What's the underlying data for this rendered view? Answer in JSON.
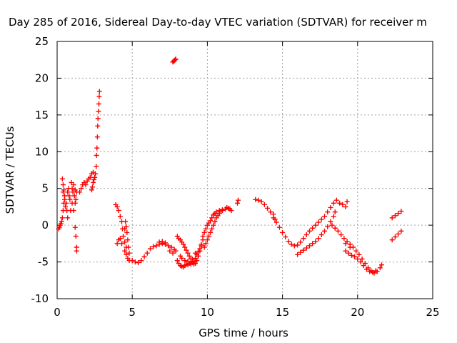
{
  "chart_data": {
    "type": "scatter",
    "title": "Day 285 of 2016, Sidereal Day-to-day VTEC variation (SDTVAR) for receiver m",
    "xlabel": "GPS time / hours",
    "ylabel": "SDTVAR / TECUs",
    "xlim": [
      0,
      25
    ],
    "ylim": [
      -10,
      25
    ],
    "xticks": [
      "0",
      "5",
      "10",
      "15",
      "20",
      "25"
    ],
    "yticks": [
      "-10",
      "-5",
      "0",
      "5",
      "10",
      "15",
      "20",
      "25"
    ],
    "xtick_values": [
      0,
      5,
      10,
      15,
      20,
      25
    ],
    "ytick_values": [
      -10,
      -5,
      0,
      5,
      10,
      15,
      20,
      25
    ],
    "grid": true,
    "marker": "+",
    "series": [
      {
        "name": "SDTVAR",
        "color": "#ff0000",
        "points": [
          [
            0.1,
            -0.5
          ],
          [
            0.15,
            -0.3
          ],
          [
            0.2,
            0.0
          ],
          [
            0.25,
            0.2
          ],
          [
            0.3,
            0.5
          ],
          [
            0.35,
            1.0
          ],
          [
            0.4,
            2.0
          ],
          [
            0.45,
            3.0
          ],
          [
            0.5,
            4.0
          ],
          [
            0.35,
            6.3
          ],
          [
            0.4,
            5.5
          ],
          [
            0.4,
            4.5
          ],
          [
            0.45,
            4.8
          ],
          [
            0.5,
            3.5
          ],
          [
            0.55,
            2.5
          ],
          [
            0.6,
            3.0
          ],
          [
            0.65,
            2.0
          ],
          [
            0.7,
            1.0
          ],
          [
            0.7,
            4.5
          ],
          [
            0.75,
            5.0
          ],
          [
            0.8,
            4.0
          ],
          [
            0.85,
            3.5
          ],
          [
            0.9,
            2.0
          ],
          [
            0.95,
            5.8
          ],
          [
            1.0,
            5.0
          ],
          [
            1.0,
            3.0
          ],
          [
            1.05,
            4.5
          ],
          [
            1.1,
            5.5
          ],
          [
            1.1,
            2.0
          ],
          [
            1.15,
            4.0
          ],
          [
            1.2,
            3.0
          ],
          [
            1.2,
            4.8
          ],
          [
            1.25,
            3.5
          ],
          [
            1.3,
            4.5
          ],
          [
            1.2,
            -0.3
          ],
          [
            1.25,
            -1.5
          ],
          [
            1.3,
            -3.0
          ],
          [
            1.3,
            -3.5
          ],
          [
            1.5,
            4.5
          ],
          [
            1.6,
            5.0
          ],
          [
            1.7,
            5.5
          ],
          [
            1.8,
            5.8
          ],
          [
            1.9,
            5.5
          ],
          [
            2.0,
            6.0
          ],
          [
            2.1,
            6.3
          ],
          [
            2.2,
            6.5
          ],
          [
            2.3,
            7.0
          ],
          [
            2.4,
            7.2
          ],
          [
            2.3,
            4.8
          ],
          [
            2.35,
            5.2
          ],
          [
            2.4,
            5.8
          ],
          [
            2.45,
            6.2
          ],
          [
            2.5,
            6.5
          ],
          [
            2.55,
            7.0
          ],
          [
            2.6,
            8.0
          ],
          [
            2.62,
            9.5
          ],
          [
            2.65,
            10.5
          ],
          [
            2.68,
            12.0
          ],
          [
            2.7,
            13.5
          ],
          [
            2.72,
            14.5
          ],
          [
            2.75,
            15.5
          ],
          [
            2.78,
            16.5
          ],
          [
            2.8,
            17.5
          ],
          [
            2.82,
            18.2
          ],
          [
            7.7,
            22.2
          ],
          [
            7.75,
            22.3
          ],
          [
            7.8,
            22.4
          ],
          [
            7.85,
            22.5
          ],
          [
            7.9,
            22.6
          ],
          [
            3.9,
            2.8
          ],
          [
            4.0,
            2.5
          ],
          [
            4.1,
            2.0
          ],
          [
            4.2,
            1.2
          ],
          [
            4.3,
            0.5
          ],
          [
            4.35,
            -0.5
          ],
          [
            4.4,
            -1.5
          ],
          [
            4.5,
            -2.3
          ],
          [
            4.6,
            -3.0
          ],
          [
            4.0,
            -2.5
          ],
          [
            4.1,
            -2.0
          ],
          [
            4.2,
            -1.8
          ],
          [
            4.3,
            -2.5
          ],
          [
            4.5,
            -3.5
          ],
          [
            4.6,
            -4.0
          ],
          [
            4.7,
            -4.5
          ],
          [
            4.8,
            -4.8
          ],
          [
            4.5,
            -0.5
          ],
          [
            4.55,
            0.5
          ],
          [
            4.6,
            -0.2
          ],
          [
            4.65,
            -1.0
          ],
          [
            4.7,
            -2.0
          ],
          [
            4.75,
            -3.0
          ],
          [
            4.8,
            -3.8
          ],
          [
            5.0,
            -4.8
          ],
          [
            5.2,
            -5.0
          ],
          [
            5.4,
            -5.1
          ],
          [
            5.6,
            -4.8
          ],
          [
            5.8,
            -4.3
          ],
          [
            6.0,
            -3.8
          ],
          [
            6.2,
            -3.2
          ],
          [
            6.4,
            -2.9
          ],
          [
            6.6,
            -2.8
          ],
          [
            6.8,
            -2.6
          ],
          [
            7.0,
            -2.5
          ],
          [
            7.2,
            -2.4
          ],
          [
            7.4,
            -2.8
          ],
          [
            7.6,
            -3.0
          ],
          [
            7.8,
            -3.3
          ],
          [
            7.9,
            -3.5
          ],
          [
            6.8,
            -2.3
          ],
          [
            7.0,
            -2.2
          ],
          [
            7.2,
            -2.6
          ],
          [
            7.5,
            -3.5
          ],
          [
            7.7,
            -3.8
          ],
          [
            8.0,
            -1.5
          ],
          [
            8.1,
            -1.8
          ],
          [
            8.2,
            -2.0
          ],
          [
            8.3,
            -2.3
          ],
          [
            8.4,
            -2.6
          ],
          [
            8.5,
            -3.0
          ],
          [
            8.6,
            -3.4
          ],
          [
            8.7,
            -3.8
          ],
          [
            8.8,
            -4.2
          ],
          [
            8.9,
            -4.6
          ],
          [
            9.0,
            -5.0
          ],
          [
            9.1,
            -5.3
          ],
          [
            9.2,
            -5.2
          ],
          [
            9.3,
            -4.8
          ],
          [
            9.4,
            -4.2
          ],
          [
            9.5,
            -3.5
          ],
          [
            9.6,
            -2.8
          ],
          [
            9.7,
            -2.0
          ],
          [
            8.0,
            -4.8
          ],
          [
            8.1,
            -5.2
          ],
          [
            8.2,
            -5.5
          ],
          [
            8.3,
            -5.6
          ],
          [
            8.4,
            -5.7
          ],
          [
            8.5,
            -5.5
          ],
          [
            8.6,
            -5.3
          ],
          [
            8.7,
            -5.4
          ],
          [
            8.8,
            -5.2
          ],
          [
            8.9,
            -5.3
          ],
          [
            9.0,
            -5.1
          ],
          [
            9.1,
            -4.9
          ],
          [
            9.2,
            -4.5
          ],
          [
            9.3,
            -4.0
          ],
          [
            9.4,
            -3.6
          ],
          [
            9.5,
            -3.2
          ],
          [
            9.6,
            -2.6
          ],
          [
            8.2,
            -4.2
          ],
          [
            8.3,
            -4.5
          ],
          [
            8.5,
            -4.8
          ],
          [
            8.7,
            -4.9
          ],
          [
            9.0,
            -4.6
          ],
          [
            9.2,
            -3.8
          ],
          [
            9.7,
            -1.5
          ],
          [
            9.8,
            -1.0
          ],
          [
            9.9,
            -0.5
          ],
          [
            10.0,
            0.0
          ],
          [
            10.1,
            0.3
          ],
          [
            10.2,
            0.6
          ],
          [
            10.3,
            1.0
          ],
          [
            10.4,
            1.4
          ],
          [
            10.5,
            1.6
          ],
          [
            10.6,
            1.8
          ],
          [
            10.8,
            2.0
          ],
          [
            11.0,
            2.1
          ],
          [
            11.2,
            2.2
          ],
          [
            11.4,
            2.3
          ],
          [
            11.6,
            2.0
          ],
          [
            9.8,
            -3.0
          ],
          [
            9.9,
            -2.5
          ],
          [
            10.0,
            -2.0
          ],
          [
            10.1,
            -1.5
          ],
          [
            10.2,
            -1.0
          ],
          [
            10.3,
            -0.5
          ],
          [
            10.4,
            0.0
          ],
          [
            10.5,
            0.5
          ],
          [
            10.6,
            1.0
          ],
          [
            10.7,
            1.3
          ],
          [
            10.8,
            1.6
          ],
          [
            10.9,
            1.9
          ],
          [
            11.0,
            2.0
          ],
          [
            11.3,
            2.4
          ],
          [
            11.5,
            2.2
          ],
          [
            12.0,
            3.0
          ],
          [
            12.05,
            3.4
          ],
          [
            13.2,
            3.5
          ],
          [
            13.4,
            3.4
          ],
          [
            13.6,
            3.2
          ],
          [
            13.8,
            2.8
          ],
          [
            14.0,
            2.3
          ],
          [
            14.2,
            1.8
          ],
          [
            14.4,
            1.0
          ],
          [
            14.6,
            0.4
          ],
          [
            14.8,
            -0.3
          ],
          [
            15.0,
            -1.0
          ],
          [
            15.2,
            -1.6
          ],
          [
            15.4,
            -2.2
          ],
          [
            15.6,
            -2.6
          ],
          [
            15.8,
            -2.8
          ],
          [
            16.0,
            -2.7
          ],
          [
            16.2,
            -2.3
          ],
          [
            16.4,
            -1.8
          ],
          [
            16.6,
            -1.3
          ],
          [
            16.8,
            -0.8
          ],
          [
            17.0,
            -0.4
          ],
          [
            17.2,
            0.0
          ],
          [
            17.4,
            0.4
          ],
          [
            17.6,
            0.8
          ],
          [
            17.8,
            1.2
          ],
          [
            18.0,
            1.8
          ],
          [
            18.2,
            2.4
          ],
          [
            18.4,
            3.0
          ],
          [
            18.6,
            3.4
          ],
          [
            18.8,
            3.0
          ],
          [
            19.0,
            2.8
          ],
          [
            19.2,
            2.5
          ],
          [
            19.3,
            3.2
          ],
          [
            14.4,
            1.5
          ],
          [
            14.5,
            0.8
          ],
          [
            16.0,
            -4.0
          ],
          [
            16.2,
            -3.7
          ],
          [
            16.4,
            -3.4
          ],
          [
            16.6,
            -3.1
          ],
          [
            16.8,
            -2.8
          ],
          [
            17.0,
            -2.5
          ],
          [
            17.2,
            -2.2
          ],
          [
            17.4,
            -1.8
          ],
          [
            17.6,
            -1.3
          ],
          [
            17.8,
            -0.8
          ],
          [
            18.0,
            -0.2
          ],
          [
            18.2,
            0.5
          ],
          [
            18.4,
            1.2
          ],
          [
            18.5,
            1.8
          ],
          [
            18.3,
            0.0
          ],
          [
            18.5,
            -0.4
          ],
          [
            18.7,
            -0.8
          ],
          [
            18.9,
            -1.3
          ],
          [
            19.1,
            -1.8
          ],
          [
            19.3,
            -2.2
          ],
          [
            19.5,
            -2.6
          ],
          [
            19.7,
            -3.0
          ],
          [
            19.9,
            -3.5
          ],
          [
            20.1,
            -4.0
          ],
          [
            20.3,
            -4.6
          ],
          [
            20.5,
            -5.2
          ],
          [
            20.7,
            -5.8
          ],
          [
            20.9,
            -6.2
          ],
          [
            21.1,
            -6.5
          ],
          [
            21.3,
            -6.3
          ],
          [
            21.5,
            -5.8
          ],
          [
            21.6,
            -5.4
          ],
          [
            19.2,
            -3.5
          ],
          [
            19.4,
            -3.8
          ],
          [
            19.6,
            -4.1
          ],
          [
            19.8,
            -4.3
          ],
          [
            20.0,
            -4.6
          ],
          [
            20.2,
            -5.0
          ],
          [
            20.4,
            -5.5
          ],
          [
            20.6,
            -6.0
          ],
          [
            20.8,
            -6.3
          ],
          [
            21.0,
            -6.4
          ],
          [
            21.2,
            -6.2
          ],
          [
            19.2,
            -2.5
          ],
          [
            19.5,
            -3.0
          ],
          [
            22.3,
            -2.0
          ],
          [
            22.5,
            -1.6
          ],
          [
            22.7,
            -1.2
          ],
          [
            22.9,
            -0.8
          ],
          [
            22.3,
            1.0
          ],
          [
            22.5,
            1.3
          ],
          [
            22.7,
            1.6
          ],
          [
            22.9,
            1.9
          ]
        ]
      }
    ]
  }
}
